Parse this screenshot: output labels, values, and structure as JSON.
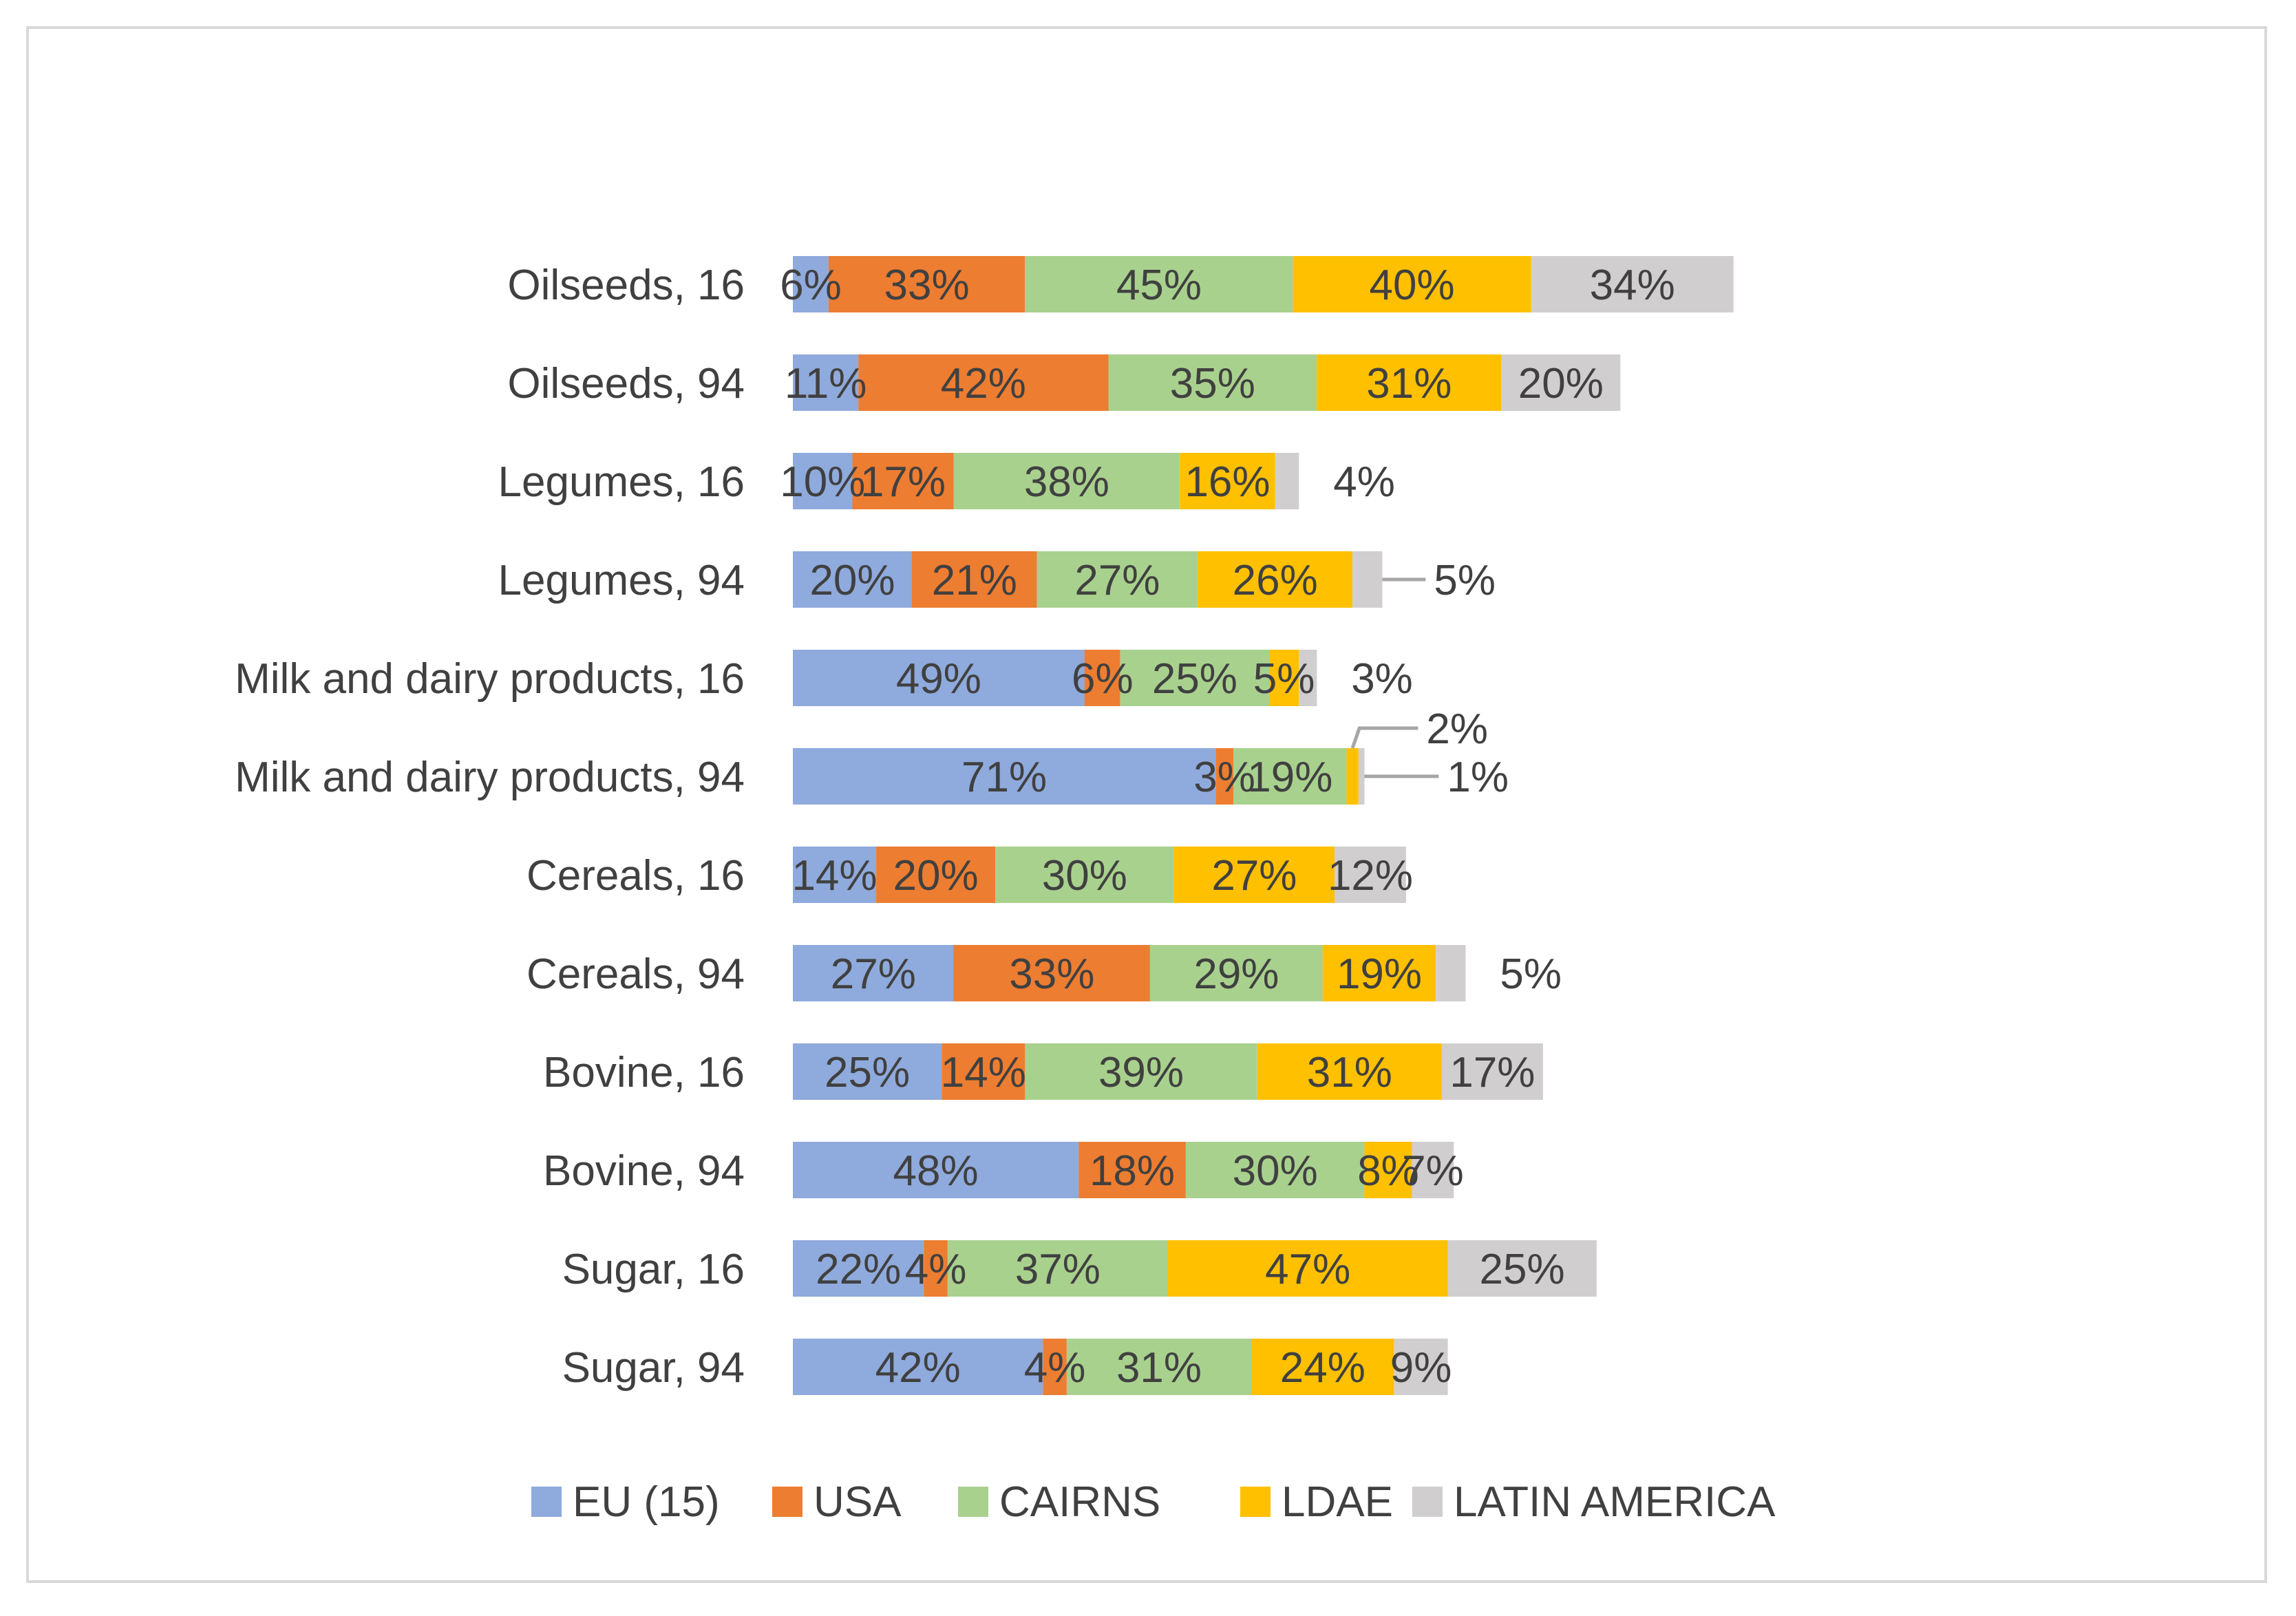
{
  "chart_data": {
    "type": "bar",
    "orientation": "horizontal",
    "stacked": true,
    "categories": [
      "Oilseeds, 16",
      "Oilseeds, 94",
      "Legumes, 16",
      "Legumes, 94",
      "Milk and dairy products, 16",
      "Milk and dairy products, 94",
      "Cereals, 16",
      "Cereals, 94",
      "Bovine, 16",
      "Bovine, 94",
      "Sugar, 16",
      "Sugar, 94"
    ],
    "series": [
      {
        "name": "EU (15)",
        "color": "#8faadc",
        "values": [
          6,
          11,
          10,
          20,
          49,
          71,
          14,
          27,
          25,
          48,
          22,
          42
        ]
      },
      {
        "name": "USA",
        "color": "#ed7d31",
        "values": [
          33,
          42,
          17,
          21,
          6,
          3,
          20,
          33,
          14,
          18,
          4,
          4
        ]
      },
      {
        "name": "CAIRNS",
        "color": "#a9d18e",
        "values": [
          45,
          35,
          38,
          27,
          25,
          19,
          30,
          29,
          39,
          30,
          37,
          31
        ]
      },
      {
        "name": "LDAE",
        "color": "#ffc000",
        "values": [
          40,
          31,
          16,
          26,
          5,
          2,
          27,
          19,
          31,
          8,
          47,
          24
        ]
      },
      {
        "name": "LATIN AMERICA",
        "color": "#d0cece",
        "values": [
          34,
          20,
          4,
          5,
          3,
          1,
          12,
          5,
          17,
          7,
          25,
          9
        ]
      }
    ],
    "value_suffix": "%",
    "outside_labels": [
      {
        "category": 2,
        "series": 4
      },
      {
        "category": 3,
        "series": 4,
        "leader": true
      },
      {
        "category": 4,
        "series": 4
      },
      {
        "category": 5,
        "series": 3,
        "leader": true
      },
      {
        "category": 5,
        "series": 4,
        "leader": true
      },
      {
        "category": 7,
        "series": 4
      }
    ],
    "legend_position": "bottom",
    "grid": false,
    "axis_visible": false
  }
}
